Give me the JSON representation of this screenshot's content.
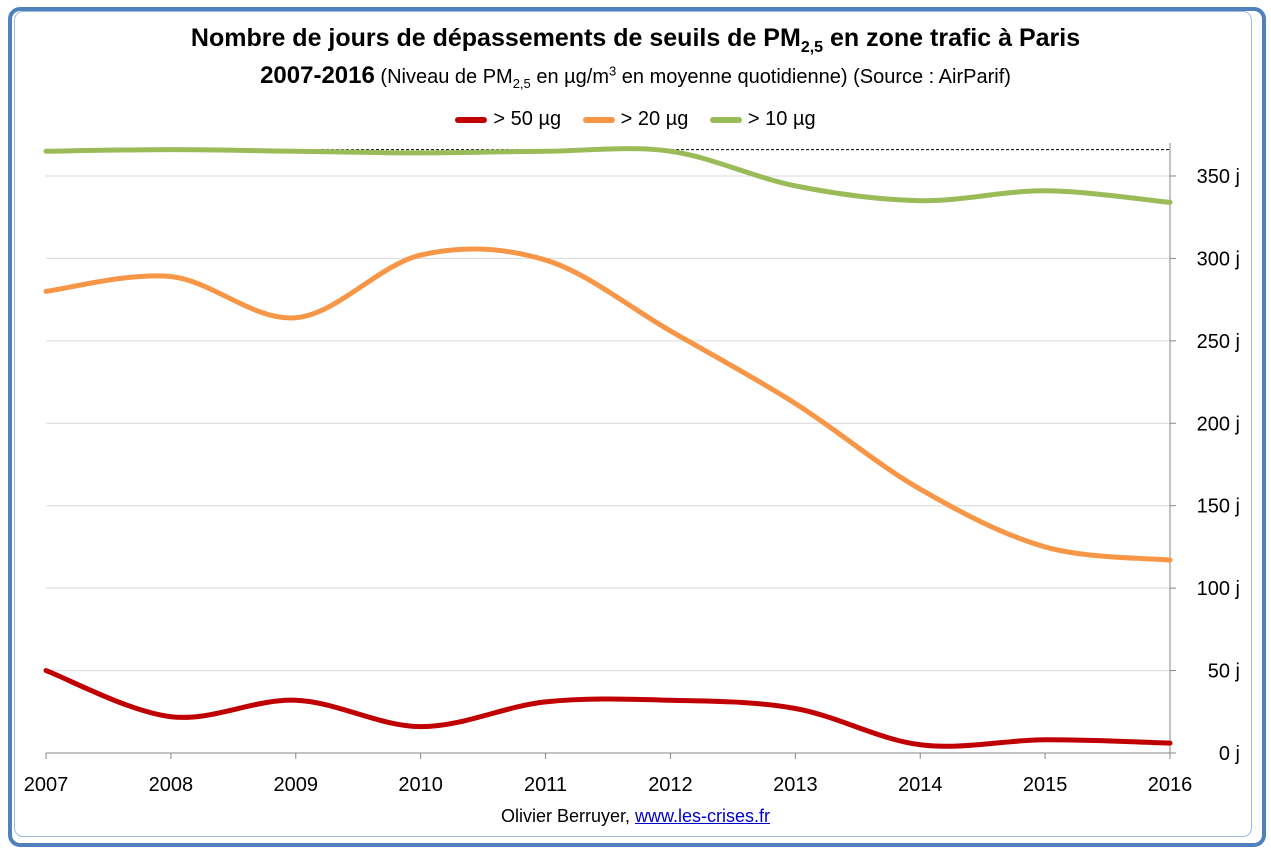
{
  "chart_data": {
    "type": "line",
    "title": {
      "main_prefix": "Nombre de jours de dépassements de seuils de PM",
      "main_sub": "2,5",
      "main_suffix": " en zone trafic à Paris",
      "years": "2007-2016",
      "note_prefix": " (Niveau de PM",
      "note_sub": "2,5",
      "note_mid": " en µg/m",
      "note_sup": "3",
      "note_suffix": "  en moyenne quotidienne) (Source : AirParif)"
    },
    "x": [
      2007,
      2008,
      2009,
      2010,
      2011,
      2012,
      2013,
      2014,
      2015,
      2016
    ],
    "xlim": [
      2007,
      2016
    ],
    "ylim": [
      0,
      370
    ],
    "yticks": [
      0,
      50,
      100,
      150,
      200,
      250,
      300,
      350
    ],
    "ytick_labels": [
      "0 j",
      "50 j",
      "100 j",
      "150 j",
      "200 j",
      "250 j",
      "300 j",
      "350 j"
    ],
    "xtick_labels": [
      "2007",
      "2008",
      "2009",
      "2010",
      "2011",
      "2012",
      "2013",
      "2014",
      "2015",
      "2016"
    ],
    "reference_line": 366,
    "grid": true,
    "legend_position": "top",
    "series": [
      {
        "name": "> 50 µg",
        "color": "#c00000",
        "values": [
          50,
          22,
          32,
          16,
          31,
          32,
          27,
          5,
          8,
          6
        ]
      },
      {
        "name": "> 20 µg",
        "color": "#f79646",
        "values": [
          280,
          289,
          264,
          302,
          299,
          256,
          212,
          160,
          125,
          117
        ]
      },
      {
        "name": "> 10 µg",
        "color": "#9bbb59",
        "values": [
          365,
          366,
          365,
          364,
          365,
          365,
          344,
          335,
          341,
          334
        ]
      }
    ]
  },
  "credit": {
    "author": "Olivier Berruyer,  ",
    "site": "www.les-crises.fr"
  }
}
